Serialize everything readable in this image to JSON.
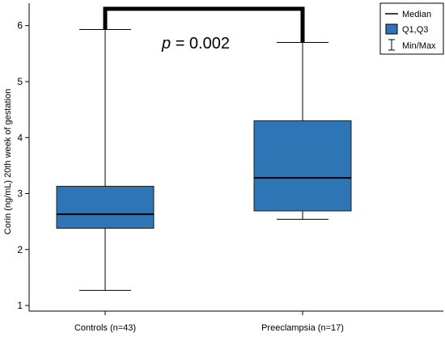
{
  "chart_data": {
    "type": "boxplot",
    "title": "",
    "ylabel": "Corin (ng/mL) 20th week of gestation",
    "xlabel": "",
    "ylim": [
      0.9,
      6.4
    ],
    "yticks": [
      1,
      2,
      3,
      4,
      5,
      6
    ],
    "grid": false,
    "legend_position": "top-right",
    "categories": [
      "Controls (n=43)",
      "Preeclampsia (n=17)"
    ],
    "boxes": [
      {
        "category": "Controls (n=43)",
        "min": 1.27,
        "q1": 2.38,
        "median": 2.63,
        "q3": 3.13,
        "max": 5.93
      },
      {
        "category": "Preeclampsia (n=17)",
        "min": 2.54,
        "q1": 2.69,
        "median": 3.28,
        "q3": 4.3,
        "max": 5.7
      }
    ],
    "legend": {
      "median": "Median",
      "box": "Q1,Q3",
      "whisker": "Min/Max"
    },
    "annotation": {
      "p_symbol": "p",
      "p_rest": " = 0.002",
      "bracket_y": 6.3
    },
    "colors": {
      "box_fill": "#2e75b6",
      "box_stroke": "#1f1f1f",
      "line": "#000000"
    }
  }
}
